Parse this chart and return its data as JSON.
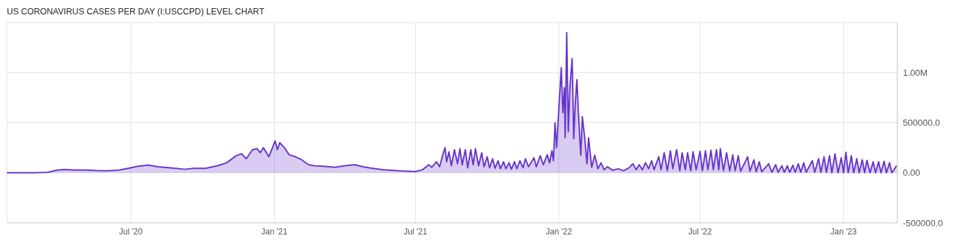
{
  "chart_data": {
    "type": "area",
    "title": "US CORONAVIRUS CASES PER DAY (I:USCCPD) LEVEL CHART",
    "grid": true,
    "xlim": [
      "2020-01-24",
      "2023-03-11"
    ],
    "xticks": [
      {
        "value": "2020-07-01",
        "label": "Jul '20"
      },
      {
        "value": "2021-01-01",
        "label": "Jan '21"
      },
      {
        "value": "2021-07-01",
        "label": "Jul '21"
      },
      {
        "value": "2022-01-01",
        "label": "Jan '22"
      },
      {
        "value": "2022-07-01",
        "label": "Jul '22"
      },
      {
        "value": "2023-01-01",
        "label": "Jan '23"
      }
    ],
    "ylim": [
      -500000,
      1500000
    ],
    "yticks": [
      {
        "value": -500000,
        "label": "-500000.0"
      },
      {
        "value": 0,
        "label": "0.00"
      },
      {
        "value": 500000,
        "label": "500000.0"
      },
      {
        "value": 1000000,
        "label": "1.00M"
      }
    ],
    "x": [
      "2020-01-24",
      "2020-03-01",
      "2020-03-17",
      "2020-03-28",
      "2020-04-06",
      "2020-04-20",
      "2020-05-04",
      "2020-05-18",
      "2020-06-01",
      "2020-06-15",
      "2020-07-01",
      "2020-07-10",
      "2020-07-23",
      "2020-08-05",
      "2020-08-20",
      "2020-09-08",
      "2020-09-20",
      "2020-10-05",
      "2020-10-20",
      "2020-11-01",
      "2020-11-13",
      "2020-11-20",
      "2020-11-26",
      "2020-12-04",
      "2020-12-10",
      "2020-12-14",
      "2020-12-18",
      "2020-12-25",
      "2021-01-02",
      "2021-01-05",
      "2021-01-08",
      "2021-01-14",
      "2021-01-20",
      "2021-01-28",
      "2021-02-05",
      "2021-02-14",
      "2021-02-21",
      "2021-03-05",
      "2021-03-20",
      "2021-04-01",
      "2021-04-14",
      "2021-04-25",
      "2021-05-04",
      "2021-05-20",
      "2021-06-12",
      "2021-07-01",
      "2021-07-10",
      "2021-07-18",
      "2021-07-22",
      "2021-07-28",
      "2021-08-01",
      "2021-08-05",
      "2021-08-08",
      "2021-08-10",
      "2021-08-13",
      "2021-08-16",
      "2021-08-20",
      "2021-08-24",
      "2021-08-27",
      "2021-08-30",
      "2021-09-03",
      "2021-09-06",
      "2021-09-10",
      "2021-09-13",
      "2021-09-16",
      "2021-09-20",
      "2021-09-24",
      "2021-09-27",
      "2021-10-01",
      "2021-10-04",
      "2021-10-08",
      "2021-10-11",
      "2021-10-15",
      "2021-10-18",
      "2021-10-22",
      "2021-10-25",
      "2021-10-29",
      "2021-11-01",
      "2021-11-05",
      "2021-11-08",
      "2021-11-12",
      "2021-11-16",
      "2021-11-19",
      "2021-11-23",
      "2021-11-30",
      "2021-12-03",
      "2021-12-08",
      "2021-12-12",
      "2021-12-17",
      "2021-12-20",
      "2021-12-23",
      "2021-12-25",
      "2021-12-27",
      "2021-12-29",
      "2022-01-04",
      "2022-01-06",
      "2022-01-08",
      "2022-01-09",
      "2022-01-11",
      "2022-01-13",
      "2022-01-15",
      "2022-01-18",
      "2022-01-20",
      "2022-01-22",
      "2022-01-24",
      "2022-01-26",
      "2022-01-29",
      "2022-01-31",
      "2022-02-03",
      "2022-02-06",
      "2022-02-08",
      "2022-02-12",
      "2022-02-16",
      "2022-02-20",
      "2022-02-24",
      "2022-02-28",
      "2022-03-04",
      "2022-03-11",
      "2022-03-18",
      "2022-03-25",
      "2022-04-01",
      "2022-04-06",
      "2022-04-10",
      "2022-04-14",
      "2022-04-18",
      "2022-04-22",
      "2022-04-26",
      "2022-04-30",
      "2022-05-03",
      "2022-05-09",
      "2022-05-12",
      "2022-05-16",
      "2022-05-20",
      "2022-05-24",
      "2022-05-27",
      "2022-06-01",
      "2022-06-05",
      "2022-06-08",
      "2022-06-12",
      "2022-06-15",
      "2022-06-19",
      "2022-06-22",
      "2022-06-26",
      "2022-07-01",
      "2022-07-04",
      "2022-07-08",
      "2022-07-11",
      "2022-07-15",
      "2022-07-18",
      "2022-07-22",
      "2022-07-25",
      "2022-07-27",
      "2022-07-31",
      "2022-08-04",
      "2022-08-08",
      "2022-08-12",
      "2022-08-15",
      "2022-08-19",
      "2022-08-22",
      "2022-08-31",
      "2022-09-03",
      "2022-09-08",
      "2022-09-11",
      "2022-09-15",
      "2022-09-18",
      "2022-09-27",
      "2022-10-01",
      "2022-10-06",
      "2022-10-09",
      "2022-10-14",
      "2022-10-17",
      "2022-10-21",
      "2022-10-24",
      "2022-10-28",
      "2022-10-31",
      "2022-11-04",
      "2022-11-07",
      "2022-11-11",
      "2022-11-14",
      "2022-11-22",
      "2022-11-25",
      "2022-11-30",
      "2022-12-03",
      "2022-12-07",
      "2022-12-10",
      "2022-12-14",
      "2022-12-17",
      "2022-12-21",
      "2022-12-25",
      "2022-12-29",
      "2023-01-01",
      "2023-01-04",
      "2023-01-07",
      "2023-01-11",
      "2023-01-14",
      "2023-01-18",
      "2023-01-21",
      "2023-01-25",
      "2023-01-28",
      "2023-01-31",
      "2023-02-04",
      "2023-02-08",
      "2023-02-11",
      "2023-02-15",
      "2023-02-18",
      "2023-02-22",
      "2023-02-25",
      "2023-03-01",
      "2023-03-04",
      "2023-03-10"
    ],
    "series": [
      {
        "color": "#6633cc",
        "values": [
          0,
          0,
          5000,
          25000,
          32000,
          28000,
          27000,
          22000,
          20000,
          25000,
          50000,
          65000,
          77000,
          60000,
          50000,
          35000,
          45000,
          45000,
          70000,
          100000,
          170000,
          190000,
          140000,
          230000,
          240000,
          200000,
          250000,
          160000,
          317000,
          230000,
          300000,
          250000,
          180000,
          160000,
          130000,
          80000,
          70000,
          65000,
          55000,
          70000,
          80000,
          60000,
          48000,
          30000,
          18000,
          12000,
          30000,
          80000,
          55000,
          110000,
          60000,
          180000,
          250000,
          110000,
          210000,
          70000,
          230000,
          90000,
          240000,
          80000,
          230000,
          50000,
          230000,
          80000,
          240000,
          70000,
          200000,
          60000,
          160000,
          50000,
          140000,
          45000,
          120000,
          40000,
          110000,
          40000,
          100000,
          35000,
          110000,
          40000,
          120000,
          50000,
          140000,
          60000,
          150000,
          60000,
          170000,
          80000,
          180000,
          100000,
          220000,
          120000,
          500000,
          250000,
          1050000,
          600000,
          850000,
          350000,
          1400000,
          410000,
          850000,
          1140000,
          340000,
          700000,
          930000,
          600000,
          175000,
          560000,
          350000,
          90000,
          350000,
          55000,
          175000,
          40000,
          100000,
          30000,
          60000,
          25000,
          40000,
          20000,
          50000,
          90000,
          30000,
          80000,
          30000,
          100000,
          40000,
          120000,
          30000,
          160000,
          30000,
          200000,
          20000,
          220000,
          40000,
          230000,
          20000,
          200000,
          30000,
          200000,
          20000,
          210000,
          30000,
          215000,
          20000,
          220000,
          30000,
          225000,
          30000,
          230000,
          30000,
          240000,
          20000,
          200000,
          20000,
          180000,
          20000,
          170000,
          15000,
          160000,
          15000,
          130000,
          10000,
          110000,
          10000,
          90000,
          5000,
          80000,
          5000,
          70000,
          5000,
          70000,
          5000,
          75000,
          5000,
          90000,
          5000,
          100000,
          5000,
          120000,
          5000,
          140000,
          5000,
          160000,
          5000,
          170000,
          0,
          190000,
          0,
          150000,
          0,
          205000,
          0,
          170000,
          0,
          140000,
          0,
          130000,
          0,
          125000,
          0,
          110000,
          0,
          110000,
          0,
          115000,
          0,
          100000,
          0,
          70000
        ]
      }
    ]
  }
}
